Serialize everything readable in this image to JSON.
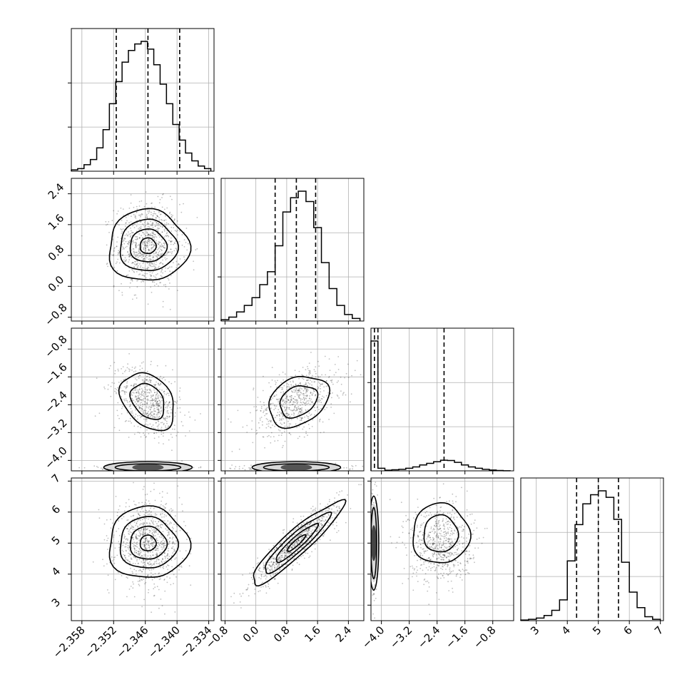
{
  "chart_data": {
    "type": "corner",
    "grid": true,
    "parameters": [
      {
        "index": 0,
        "range": [
          -2.36,
          -2.333
        ],
        "ticks": [
          -2.358,
          -2.352,
          -2.346,
          -2.34,
          -2.334
        ],
        "tick_labels": [
          "−2.358",
          "−2.352",
          "−2.346",
          "−2.340",
          "−2.334"
        ],
        "quantiles": [
          -2.3515,
          -2.3455,
          -2.3395
        ],
        "median": -2.3455,
        "sd": 0.0031,
        "histogram": {
          "bin_edges": [
            -2.36,
            -2.3588,
            -2.3576,
            -2.3564,
            -2.3552,
            -2.354,
            -2.3528,
            -2.3516,
            -2.3504,
            -2.3492,
            -2.348,
            -2.3468,
            -2.3456,
            -2.3444,
            -2.3432,
            -2.342,
            -2.3408,
            -2.3396,
            -2.3384,
            -2.3372,
            -2.336,
            -2.3348,
            -2.3336
          ],
          "counts": [
            1,
            2,
            5,
            9,
            18,
            32,
            52,
            69,
            84,
            93,
            98,
            100,
            94,
            82,
            67,
            52,
            36,
            24,
            14,
            8,
            4,
            2
          ]
        }
      },
      {
        "index": 1,
        "range": [
          -0.9,
          2.8
        ],
        "ticks": [
          -0.8,
          0.0,
          0.8,
          1.6,
          2.4
        ],
        "tick_labels": [
          "−0.8",
          "0.0",
          "0.8",
          "1.6",
          "2.4"
        ],
        "quantiles": [
          0.5,
          1.05,
          1.55
        ],
        "median": 1.05,
        "sd": 0.55,
        "histogram": {
          "bin_edges": [
            -0.9,
            -0.7,
            -0.5,
            -0.3,
            -0.1,
            0.1,
            0.3,
            0.5,
            0.7,
            0.9,
            1.1,
            1.3,
            1.5,
            1.7,
            1.9,
            2.1,
            2.3,
            2.5,
            2.7
          ],
          "counts": [
            1,
            3,
            7,
            12,
            18,
            28,
            38,
            58,
            84,
            95,
            100,
            92,
            72,
            45,
            25,
            12,
            5,
            2
          ]
        }
      },
      {
        "index": 2,
        "range": [
          -4.3,
          -0.2
        ],
        "ticks": [
          -4.0,
          -3.2,
          -2.4,
          -1.6,
          -0.8
        ],
        "tick_labels": [
          "−4.0",
          "−3.2",
          "−2.4",
          "−1.6",
          "−0.8"
        ],
        "quantiles": [
          -4.2,
          -4.1,
          -2.2
        ],
        "median": -4.1,
        "spike": {
          "value": -4.25,
          "count": 100
        },
        "histogram": {
          "bin_edges": [
            -4.3,
            -4.1,
            -3.9,
            -3.7,
            -3.5,
            -3.3,
            -3.1,
            -2.9,
            -2.7,
            -2.5,
            -2.3,
            -2.1,
            -1.9,
            -1.7,
            -1.5,
            -1.3,
            -1.1,
            -0.9,
            -0.7,
            -0.5,
            -0.3
          ],
          "counts": [
            100,
            2,
            0.5,
            0.8,
            1.2,
            2,
            3,
            4.5,
            5.8,
            7,
            8.2,
            8,
            6.5,
            4.5,
            3,
            2,
            1.2,
            0.6,
            0.3,
            0.1
          ]
        }
      },
      {
        "index": 3,
        "range": [
          2.5,
          7.1
        ],
        "ticks": [
          3,
          4,
          5,
          6,
          7
        ],
        "tick_labels": [
          "3",
          "4",
          "5",
          "6",
          "7"
        ],
        "quantiles": [
          4.3,
          5.0,
          5.65
        ],
        "median": 5.0,
        "sd": 0.65,
        "histogram": {
          "bin_edges": [
            2.5,
            2.75,
            3.0,
            3.25,
            3.5,
            3.75,
            4.0,
            4.25,
            4.5,
            4.75,
            5.0,
            5.25,
            5.5,
            5.75,
            6.0,
            6.25,
            6.5,
            6.75,
            7.0
          ],
          "counts": [
            0.5,
            1,
            2,
            4,
            8,
            16,
            46,
            74,
            90,
            97,
            100,
            95,
            78,
            45,
            22,
            10,
            3,
            1
          ]
        }
      }
    ],
    "pair_panels": [
      {
        "x": 0,
        "y": 1,
        "contour_levels": 3
      },
      {
        "x": 0,
        "y": 2,
        "contour_levels": 2,
        "edge_mode": -4.2
      },
      {
        "x": 1,
        "y": 2,
        "contour_levels": 2,
        "edge_mode": -4.2
      },
      {
        "x": 0,
        "y": 3,
        "contour_levels": 3
      },
      {
        "x": 1,
        "y": 3,
        "contour_levels": 3,
        "correlation": 0.9
      },
      {
        "x": 2,
        "y": 3,
        "contour_levels": 2,
        "edge_mode": -4.2
      }
    ]
  }
}
